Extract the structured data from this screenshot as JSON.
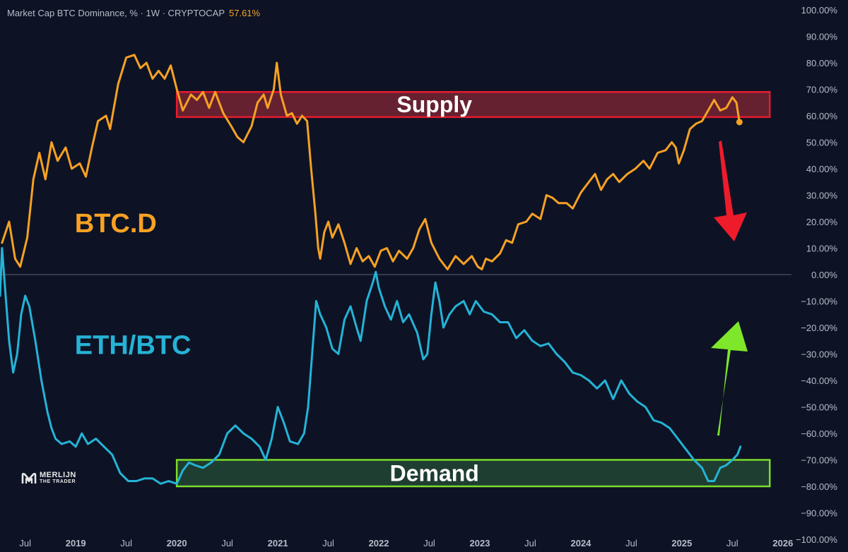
{
  "header": {
    "title": "Market Cap BTC Dominance, % · 1W · CRYPTOCAP",
    "value": "57.61%"
  },
  "logo": {
    "line1": "MERLIJN",
    "line2": "THE TRADER"
  },
  "colors": {
    "background": "#0d1325",
    "btc": "#f7a123",
    "eth": "#25b3d6",
    "supply_fill": "#7a2433",
    "supply_border": "#e51b2d",
    "demand_fill": "#244a34",
    "demand_border": "#7ddc2b",
    "arrow_down": "#ee1c2b",
    "arrow_up": "#7ee72a",
    "axis_text": "#b7bcc8"
  },
  "chart_data": {
    "type": "line",
    "y_ticks": [
      "100.00%",
      "90.00%",
      "80.00%",
      "70.00%",
      "60.00%",
      "50.00%",
      "40.00%",
      "30.00%",
      "20.00%",
      "10.00%",
      "0.00%",
      "−10.00%",
      "−20.00%",
      "−30.00%",
      "−40.00%",
      "−50.00%",
      "−60.00%",
      "−70.00%",
      "−80.00%",
      "−90.00%",
      "−100.00%"
    ],
    "ylim": [
      -100,
      100
    ],
    "xlim": [
      2018.25,
      2026.12
    ],
    "x_ticks": [
      {
        "label": "Jul",
        "x": 2018.5,
        "bold": false
      },
      {
        "label": "2019",
        "x": 2019.0,
        "bold": true
      },
      {
        "label": "Jul",
        "x": 2019.5,
        "bold": false
      },
      {
        "label": "2020",
        "x": 2020.0,
        "bold": true
      },
      {
        "label": "Jul",
        "x": 2020.5,
        "bold": false
      },
      {
        "label": "2021",
        "x": 2021.0,
        "bold": true
      },
      {
        "label": "Jul",
        "x": 2021.5,
        "bold": false
      },
      {
        "label": "2022",
        "x": 2022.0,
        "bold": true
      },
      {
        "label": "Jul",
        "x": 2022.5,
        "bold": false
      },
      {
        "label": "2023",
        "x": 2023.0,
        "bold": true
      },
      {
        "label": "Jul",
        "x": 2023.5,
        "bold": false
      },
      {
        "label": "2024",
        "x": 2024.0,
        "bold": true
      },
      {
        "label": "Jul",
        "x": 2024.5,
        "bold": false
      },
      {
        "label": "2025",
        "x": 2025.0,
        "bold": true
      },
      {
        "label": "Jul",
        "x": 2025.5,
        "bold": false
      },
      {
        "label": "2026",
        "x": 2026.0,
        "bold": true
      }
    ],
    "zero_line": 0,
    "series": [
      {
        "name": "BTC.D",
        "color": "#f7a123",
        "points": [
          [
            2018.27,
            12
          ],
          [
            2018.34,
            20
          ],
          [
            2018.4,
            6
          ],
          [
            2018.45,
            3
          ],
          [
            2018.52,
            14
          ],
          [
            2018.58,
            36
          ],
          [
            2018.64,
            46
          ],
          [
            2018.7,
            36
          ],
          [
            2018.76,
            50
          ],
          [
            2018.82,
            43
          ],
          [
            2018.9,
            48
          ],
          [
            2018.96,
            40
          ],
          [
            2019.04,
            42
          ],
          [
            2019.1,
            37
          ],
          [
            2019.16,
            48
          ],
          [
            2019.22,
            58
          ],
          [
            2019.3,
            60
          ],
          [
            2019.34,
            55
          ],
          [
            2019.42,
            72
          ],
          [
            2019.5,
            82
          ],
          [
            2019.58,
            83
          ],
          [
            2019.64,
            78
          ],
          [
            2019.7,
            80
          ],
          [
            2019.76,
            74
          ],
          [
            2019.82,
            77
          ],
          [
            2019.88,
            74
          ],
          [
            2019.94,
            79
          ],
          [
            2020.0,
            70
          ],
          [
            2020.06,
            62
          ],
          [
            2020.14,
            68
          ],
          [
            2020.2,
            66
          ],
          [
            2020.26,
            69
          ],
          [
            2020.32,
            63
          ],
          [
            2020.38,
            69
          ],
          [
            2020.46,
            61
          ],
          [
            2020.54,
            56
          ],
          [
            2020.6,
            52
          ],
          [
            2020.66,
            50
          ],
          [
            2020.74,
            56
          ],
          [
            2020.8,
            65
          ],
          [
            2020.86,
            68
          ],
          [
            2020.9,
            63
          ],
          [
            2020.96,
            70
          ],
          [
            2020.99,
            80
          ],
          [
            2021.03,
            68
          ],
          [
            2021.09,
            60
          ],
          [
            2021.14,
            61
          ],
          [
            2021.19,
            57
          ],
          [
            2021.24,
            60
          ],
          [
            2021.29,
            58
          ],
          [
            2021.33,
            40
          ],
          [
            2021.37,
            24
          ],
          [
            2021.4,
            10
          ],
          [
            2021.42,
            6
          ],
          [
            2021.46,
            16
          ],
          [
            2021.5,
            20
          ],
          [
            2021.54,
            14
          ],
          [
            2021.6,
            19
          ],
          [
            2021.66,
            12
          ],
          [
            2021.72,
            4
          ],
          [
            2021.78,
            10
          ],
          [
            2021.84,
            5
          ],
          [
            2021.9,
            7
          ],
          [
            2021.96,
            3
          ],
          [
            2022.02,
            9
          ],
          [
            2022.08,
            10
          ],
          [
            2022.14,
            5
          ],
          [
            2022.2,
            9
          ],
          [
            2022.28,
            6
          ],
          [
            2022.34,
            10
          ],
          [
            2022.4,
            17
          ],
          [
            2022.46,
            21
          ],
          [
            2022.52,
            12
          ],
          [
            2022.6,
            6
          ],
          [
            2022.68,
            2
          ],
          [
            2022.76,
            7
          ],
          [
            2022.84,
            4
          ],
          [
            2022.92,
            7
          ],
          [
            2022.98,
            3
          ],
          [
            2023.02,
            2
          ],
          [
            2023.06,
            6
          ],
          [
            2023.12,
            5
          ],
          [
            2023.2,
            8
          ],
          [
            2023.26,
            13
          ],
          [
            2023.32,
            12
          ],
          [
            2023.38,
            19
          ],
          [
            2023.46,
            20
          ],
          [
            2023.52,
            23
          ],
          [
            2023.6,
            21
          ],
          [
            2023.66,
            30
          ],
          [
            2023.72,
            29
          ],
          [
            2023.78,
            27
          ],
          [
            2023.86,
            27
          ],
          [
            2023.92,
            25
          ],
          [
            2024.0,
            31
          ],
          [
            2024.06,
            34
          ],
          [
            2024.14,
            38
          ],
          [
            2024.2,
            32
          ],
          [
            2024.26,
            36
          ],
          [
            2024.32,
            38
          ],
          [
            2024.38,
            35
          ],
          [
            2024.46,
            38
          ],
          [
            2024.54,
            40
          ],
          [
            2024.62,
            43
          ],
          [
            2024.68,
            40
          ],
          [
            2024.76,
            46
          ],
          [
            2024.84,
            47
          ],
          [
            2024.9,
            50
          ],
          [
            2024.94,
            48
          ],
          [
            2024.97,
            42
          ],
          [
            2025.02,
            47
          ],
          [
            2025.08,
            55
          ],
          [
            2025.14,
            57
          ],
          [
            2025.2,
            58
          ],
          [
            2025.26,
            62
          ],
          [
            2025.32,
            66
          ],
          [
            2025.38,
            62
          ],
          [
            2025.44,
            63
          ],
          [
            2025.5,
            67
          ],
          [
            2025.54,
            65
          ],
          [
            2025.57,
            57.61
          ]
        ]
      },
      {
        "name": "ETH/BTC",
        "color": "#25b3d6",
        "points": [
          [
            2018.25,
            -8
          ],
          [
            2018.27,
            10
          ],
          [
            2018.3,
            -5
          ],
          [
            2018.34,
            -25
          ],
          [
            2018.38,
            -37
          ],
          [
            2018.42,
            -30
          ],
          [
            2018.46,
            -15
          ],
          [
            2018.5,
            -8
          ],
          [
            2018.54,
            -12
          ],
          [
            2018.6,
            -25
          ],
          [
            2018.66,
            -40
          ],
          [
            2018.72,
            -52
          ],
          [
            2018.76,
            -58
          ],
          [
            2018.8,
            -62
          ],
          [
            2018.86,
            -64
          ],
          [
            2018.94,
            -63
          ],
          [
            2019.0,
            -65
          ],
          [
            2019.06,
            -60
          ],
          [
            2019.12,
            -64
          ],
          [
            2019.2,
            -62
          ],
          [
            2019.28,
            -65
          ],
          [
            2019.36,
            -68
          ],
          [
            2019.44,
            -75
          ],
          [
            2019.52,
            -78
          ],
          [
            2019.6,
            -78
          ],
          [
            2019.68,
            -77
          ],
          [
            2019.76,
            -77
          ],
          [
            2019.84,
            -79
          ],
          [
            2019.92,
            -78
          ],
          [
            2020.0,
            -79
          ],
          [
            2020.06,
            -74
          ],
          [
            2020.12,
            -71
          ],
          [
            2020.18,
            -72
          ],
          [
            2020.26,
            -73
          ],
          [
            2020.34,
            -71
          ],
          [
            2020.42,
            -68
          ],
          [
            2020.5,
            -60
          ],
          [
            2020.58,
            -57
          ],
          [
            2020.66,
            -60
          ],
          [
            2020.74,
            -62
          ],
          [
            2020.82,
            -65
          ],
          [
            2020.88,
            -70
          ],
          [
            2020.94,
            -62
          ],
          [
            2021.0,
            -50
          ],
          [
            2021.06,
            -56
          ],
          [
            2021.12,
            -63
          ],
          [
            2021.2,
            -64
          ],
          [
            2021.26,
            -60
          ],
          [
            2021.3,
            -50
          ],
          [
            2021.34,
            -30
          ],
          [
            2021.38,
            -10
          ],
          [
            2021.42,
            -15
          ],
          [
            2021.48,
            -20
          ],
          [
            2021.54,
            -28
          ],
          [
            2021.6,
            -30
          ],
          [
            2021.66,
            -17
          ],
          [
            2021.72,
            -12
          ],
          [
            2021.78,
            -20
          ],
          [
            2021.82,
            -25
          ],
          [
            2021.88,
            -10
          ],
          [
            2021.94,
            -3
          ],
          [
            2021.97,
            1
          ],
          [
            2022.0,
            -5
          ],
          [
            2022.06,
            -12
          ],
          [
            2022.12,
            -17
          ],
          [
            2022.18,
            -10
          ],
          [
            2022.24,
            -18
          ],
          [
            2022.3,
            -15
          ],
          [
            2022.38,
            -22
          ],
          [
            2022.44,
            -32
          ],
          [
            2022.48,
            -30
          ],
          [
            2022.52,
            -15
          ],
          [
            2022.56,
            -3
          ],
          [
            2022.6,
            -10
          ],
          [
            2022.64,
            -20
          ],
          [
            2022.7,
            -15
          ],
          [
            2022.76,
            -12
          ],
          [
            2022.84,
            -10
          ],
          [
            2022.9,
            -15
          ],
          [
            2022.96,
            -10
          ],
          [
            2023.04,
            -14
          ],
          [
            2023.12,
            -15
          ],
          [
            2023.2,
            -18
          ],
          [
            2023.28,
            -18
          ],
          [
            2023.36,
            -24
          ],
          [
            2023.44,
            -21
          ],
          [
            2023.52,
            -25
          ],
          [
            2023.6,
            -27
          ],
          [
            2023.68,
            -26
          ],
          [
            2023.76,
            -30
          ],
          [
            2023.84,
            -33
          ],
          [
            2023.92,
            -37
          ],
          [
            2024.0,
            -38
          ],
          [
            2024.08,
            -40
          ],
          [
            2024.16,
            -43
          ],
          [
            2024.24,
            -40
          ],
          [
            2024.32,
            -47
          ],
          [
            2024.4,
            -40
          ],
          [
            2024.48,
            -45
          ],
          [
            2024.56,
            -48
          ],
          [
            2024.64,
            -50
          ],
          [
            2024.72,
            -55
          ],
          [
            2024.8,
            -56
          ],
          [
            2024.88,
            -58
          ],
          [
            2024.96,
            -62
          ],
          [
            2025.04,
            -66
          ],
          [
            2025.12,
            -70
          ],
          [
            2025.2,
            -73
          ],
          [
            2025.26,
            -78
          ],
          [
            2025.32,
            -78
          ],
          [
            2025.38,
            -73
          ],
          [
            2025.44,
            -72
          ],
          [
            2025.5,
            -70
          ],
          [
            2025.55,
            -68
          ],
          [
            2025.58,
            -65
          ]
        ]
      }
    ],
    "zones": [
      {
        "label": "Supply",
        "x0": 2020.0,
        "x1": 2025.87,
        "y0": 59.5,
        "y1": 69
      },
      {
        "label": "Demand",
        "x0": 2020.0,
        "x1": 2025.87,
        "y0": -80,
        "y1": -70
      }
    ],
    "annotations": [
      {
        "text": "BTC.D",
        "x": 2018.99,
        "y": 16,
        "color": "#f7a123"
      },
      {
        "text": "ETH/BTC",
        "x": 2018.99,
        "y": -30,
        "color": "#25b3d6"
      }
    ],
    "last_value_marker": {
      "x": 2025.57,
      "y": 57.61,
      "label": "57.61%"
    }
  }
}
